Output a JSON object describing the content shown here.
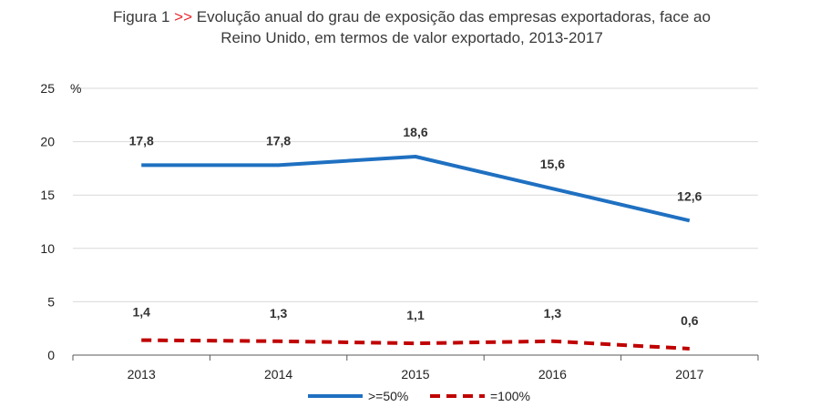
{
  "title": {
    "prefix": "Figura 1",
    "accent": ">>",
    "line1": "Evolução anual do grau de exposição das empresas exportadoras, face ao",
    "line2": "Reino Unido, em termos de valor exportado, 2013-2017"
  },
  "colors": {
    "series1": "#1f70c1",
    "series2": "#c00000",
    "accent": "#e8262c",
    "grid": "#d9d9d9",
    "axis": "#595959"
  },
  "chart_data": {
    "type": "line",
    "title": "Evolução anual do grau de exposição das empresas exportadoras, face ao Reino Unido, em termos de valor exportado, 2013-2017",
    "x": [
      "2013",
      "2014",
      "2015",
      "2016",
      "2017"
    ],
    "ylabel": "%",
    "ylim": [
      0,
      25
    ],
    "yticks": [
      "0",
      "5",
      "10",
      "15",
      "20",
      "25"
    ],
    "grid": true,
    "legend_position": "bottom",
    "series": [
      {
        "name": ">=50%",
        "values": [
          17.8,
          17.8,
          18.6,
          15.6,
          12.6
        ],
        "labels": [
          "17,8",
          "17,8",
          "18,6",
          "15,6",
          "12,6"
        ],
        "style": "solid"
      },
      {
        "name": "=100%",
        "values": [
          1.4,
          1.3,
          1.1,
          1.3,
          0.6
        ],
        "labels": [
          "1,4",
          "1,3",
          "1,1",
          "1,3",
          "0,6"
        ],
        "style": "dashed"
      }
    ]
  }
}
